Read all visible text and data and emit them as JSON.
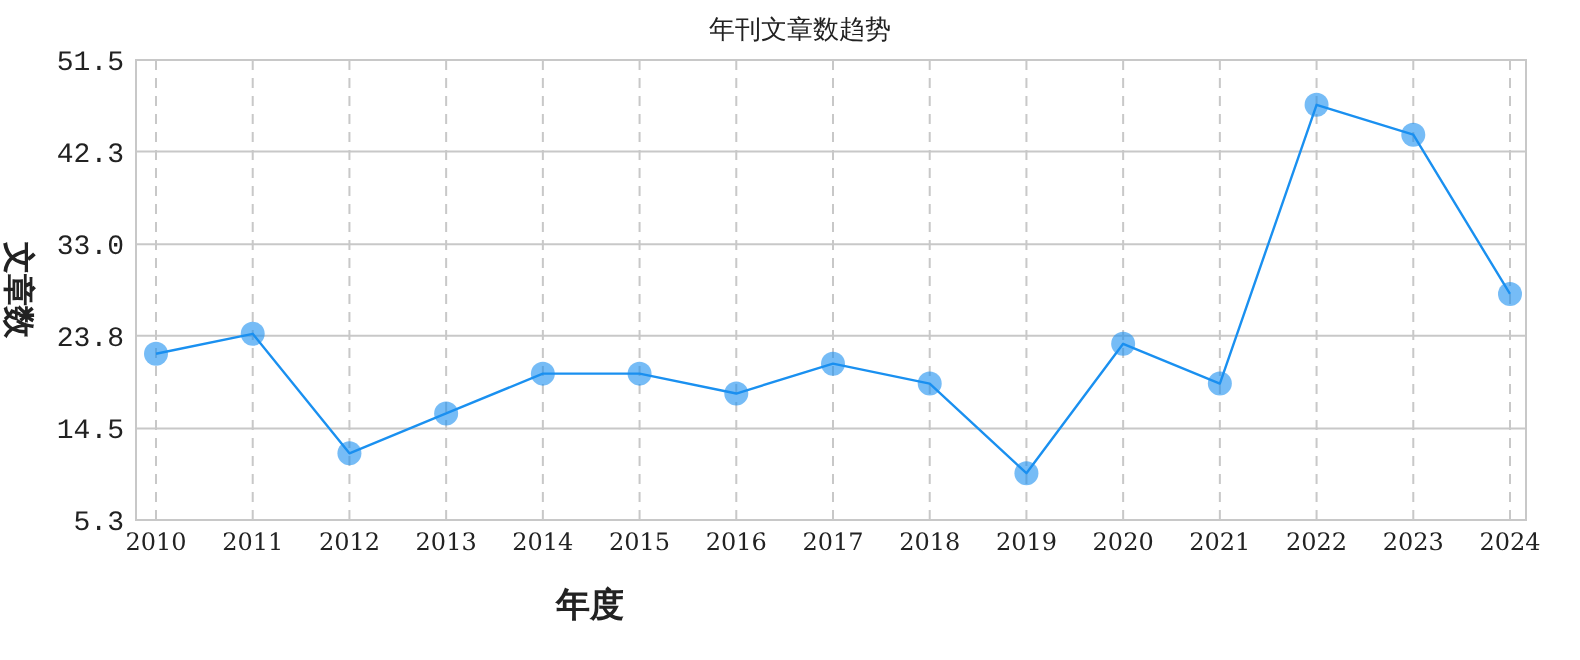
{
  "chart_data": {
    "type": "line",
    "title": "年刊文章数趋势",
    "xlabel": "年度",
    "ylabel": "文章数",
    "categories": [
      "2010",
      "2011",
      "2012",
      "2013",
      "2014",
      "2015",
      "2016",
      "2017",
      "2018",
      "2019",
      "2020",
      "2021",
      "2022",
      "2023",
      "2024"
    ],
    "series": [
      {
        "color": "#1a90f0",
        "values": [
          22,
          24,
          12,
          16,
          20,
          20,
          18,
          21,
          19,
          10,
          23,
          19,
          47,
          44,
          28
        ]
      }
    ],
    "ylim": [
      5.3,
      51.5
    ],
    "yticks": [
      5.3,
      14.5,
      23.8,
      {
        "value": 33,
        "label": "33.0"
      },
      42.3,
      51.5
    ],
    "grid": true,
    "marker": "circle",
    "line_style": "solid"
  }
}
